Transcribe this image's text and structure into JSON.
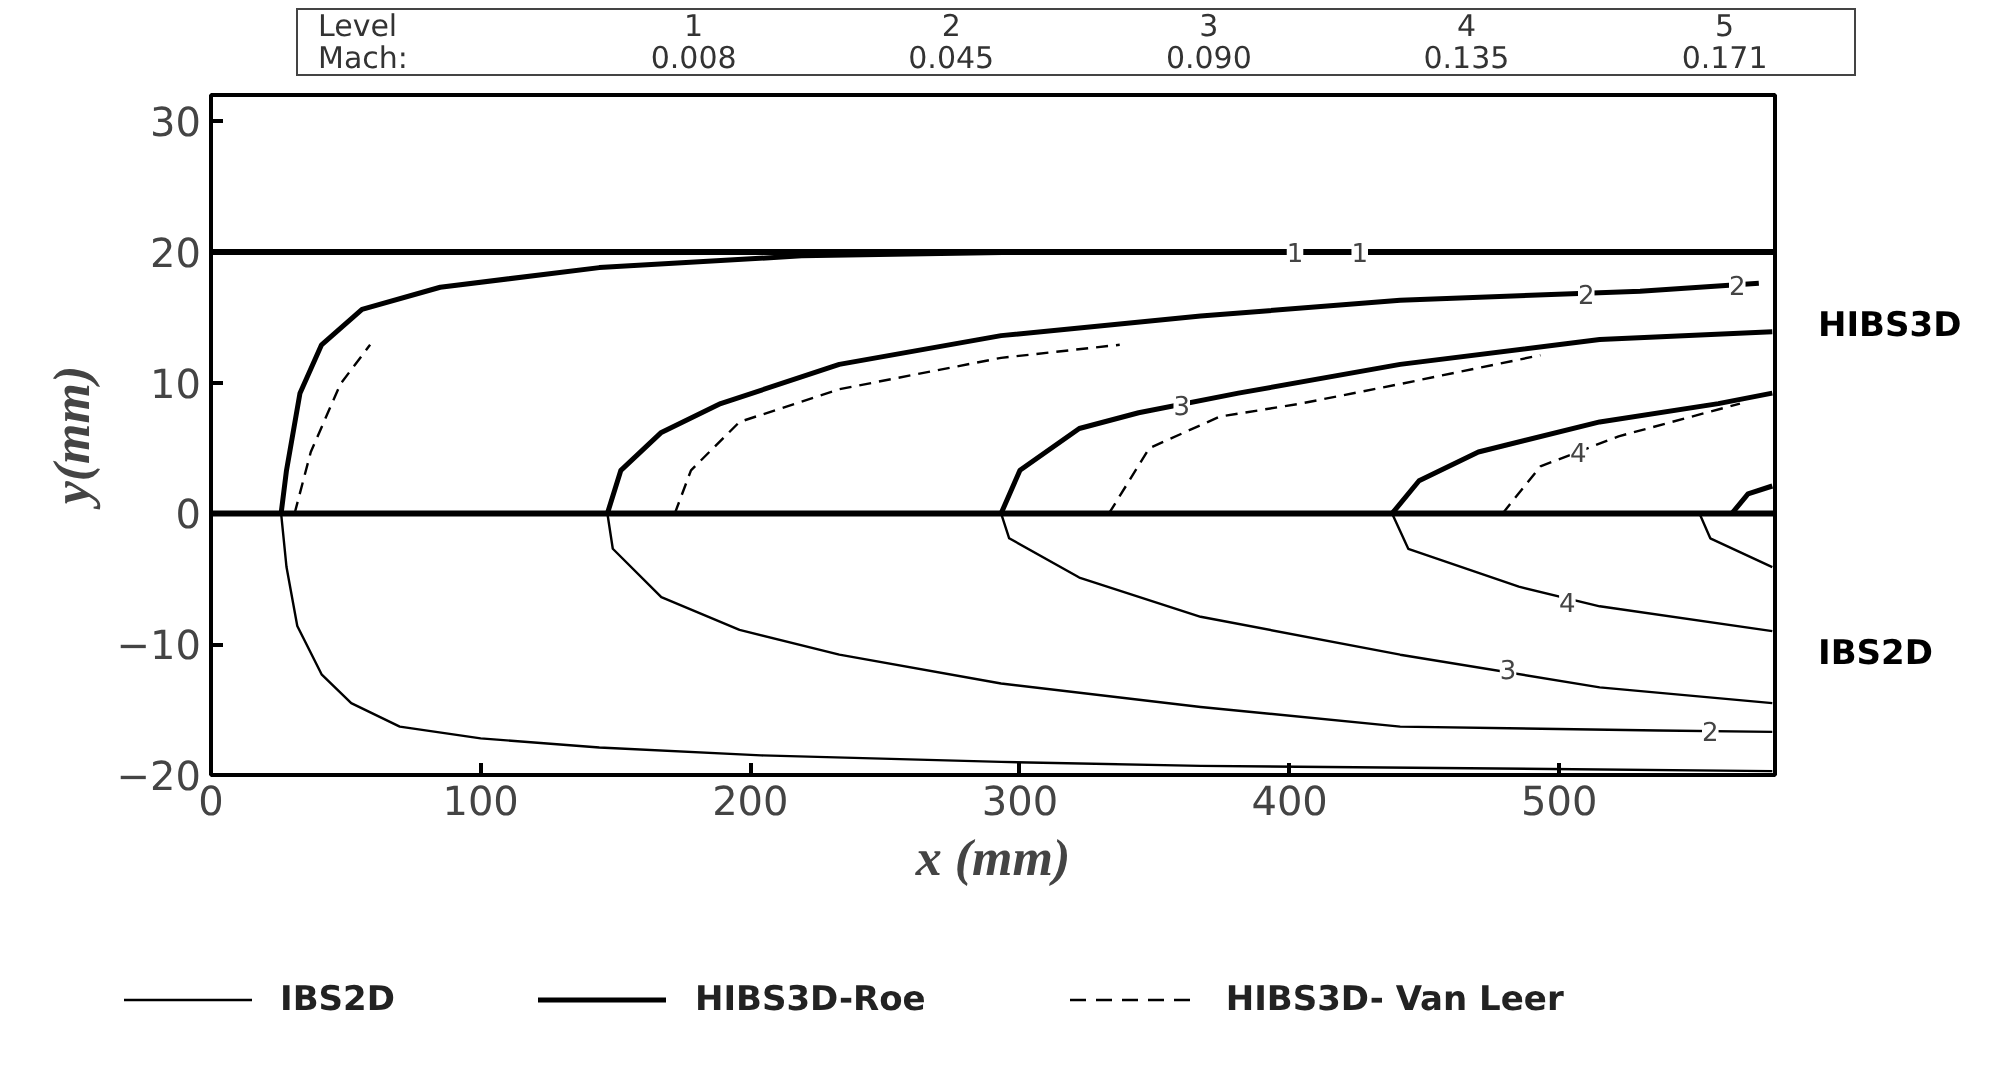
{
  "chart_data": {
    "type": "line",
    "xlabel": "x (mm)",
    "ylabel": "y(mm)",
    "xlim": [
      0,
      580
    ],
    "ylim": [
      -20,
      32
    ],
    "xticks": [
      0,
      100,
      200,
      300,
      400,
      500
    ],
    "yticks": [
      -20,
      -10,
      0,
      10,
      20,
      30
    ],
    "grid": false,
    "legend": "bottom",
    "marker": "none",
    "ref_lines": [
      {
        "axis": "y",
        "value": 20,
        "label": null,
        "color": "#000000"
      },
      {
        "axis": "y",
        "value": 0,
        "label": null,
        "color": "#000000"
      }
    ],
    "series": [
      {
        "name": "IBS2D",
        "color": "#000000",
        "line_style": "solid",
        "x": [
          26,
          28,
          32,
          41,
          52,
          70,
          100,
          144,
          204,
          293,
          367,
          579
        ],
        "values": [
          0,
          -4.1,
          -8.6,
          -12.3,
          -14.5,
          -16.3,
          -17.2,
          -17.9,
          -18.5,
          -19.0,
          -19.3,
          -19.7
        ]
      },
      {
        "name": "HIBS3D-Roe",
        "color": "#000000",
        "line_style": "solid",
        "x": [
          26,
          28,
          33,
          41,
          56,
          85,
          144,
          219,
          307,
          580
        ],
        "values": [
          0,
          3.3,
          9.2,
          12.9,
          15.6,
          17.3,
          18.8,
          19.7,
          20,
          20
        ]
      },
      {
        "name": "HIBS3D- Van Leer",
        "color": "#000000",
        "line_style": "dashed",
        "x": [
          31,
          37,
          48,
          59
        ],
        "values": [
          0,
          4.7,
          9.9,
          12.9
        ]
      },
      {
        "color": "#000000",
        "line_style": "solid",
        "x": [
          147,
          149,
          167,
          196,
          233,
          293,
          367,
          441,
          537,
          579
        ],
        "values": [
          0,
          -2.7,
          -6.4,
          -8.9,
          -10.8,
          -13.0,
          -14.8,
          -16.3,
          -16.6,
          -16.7
        ]
      },
      {
        "color": "#000000",
        "line_style": "solid",
        "x": [
          293,
          296,
          322,
          367,
          441,
          515,
          579
        ],
        "values": [
          0,
          -1.9,
          -4.9,
          -7.9,
          -10.8,
          -13.3,
          -14.5
        ]
      },
      {
        "color": "#000000",
        "line_style": "solid",
        "x": [
          438,
          444,
          485,
          515,
          579
        ],
        "values": [
          0,
          -2.7,
          -5.6,
          -7.1,
          -9.0
        ]
      },
      {
        "color": "#000000",
        "line_style": "solid",
        "x": [
          552,
          556,
          579
        ],
        "values": [
          0,
          -1.9,
          -4.1
        ]
      },
      {
        "color": "#000000",
        "line_style": "solid",
        "x": [
          147,
          152,
          167,
          189,
          233,
          293,
          367,
          441,
          530,
          574
        ],
        "values": [
          0,
          3.3,
          6.2,
          8.4,
          11.4,
          13.6,
          15.1,
          16.3,
          17.0,
          17.6
        ]
      },
      {
        "color": "#000000",
        "line_style": "solid",
        "x": [
          293,
          300,
          322,
          344,
          381,
          441,
          515,
          579
        ],
        "values": [
          0,
          3.3,
          6.5,
          7.7,
          9.2,
          11.4,
          13.3,
          13.9
        ]
      },
      {
        "color": "#000000",
        "line_style": "solid",
        "x": [
          438,
          448,
          470,
          515,
          559,
          579
        ],
        "values": [
          0,
          2.5,
          4.7,
          7.0,
          8.4,
          9.2
        ]
      },
      {
        "color": "#000000",
        "line_style": "solid",
        "x": [
          564,
          570,
          579
        ],
        "values": [
          0,
          1.5,
          2.1
        ]
      },
      {
        "color": "#000000",
        "line_style": "dashed",
        "x": [
          172,
          178,
          196,
          233,
          293,
          337
        ],
        "values": [
          0,
          3.3,
          7.0,
          9.5,
          11.9,
          12.9
        ]
      },
      {
        "color": "#000000",
        "line_style": "dashed",
        "x": [
          333,
          348,
          374,
          404,
          441,
          493
        ],
        "values": [
          0,
          5.0,
          7.4,
          8.4,
          9.9,
          12.1
        ]
      },
      {
        "color": "#000000",
        "line_style": "dashed",
        "x": [
          479,
          493,
          522,
          567
        ],
        "values": [
          0,
          3.6,
          5.9,
          8.4
        ]
      }
    ],
    "annotations": [
      "Level",
      "1",
      "2",
      "3",
      "4",
      "5",
      "Mach:",
      "0.008",
      "0.045",
      "0.090",
      "0.135",
      "0.171",
      "HIBS3D",
      "IBS2D",
      {
        "text": "1",
        "x": 402,
        "y": 20
      },
      {
        "text": "1",
        "x": 426,
        "y": 20
      },
      {
        "text": "2",
        "x": 510,
        "y": 16.8
      },
      {
        "text": "2",
        "x": 566,
        "y": 17.5
      },
      {
        "text": "3",
        "x": 360,
        "y": 8.3
      },
      {
        "text": "4",
        "x": 507,
        "y": 4.7
      },
      {
        "text": "4",
        "x": 503,
        "y": -6.8
      },
      {
        "text": "3",
        "x": 481,
        "y": -11.9
      },
      {
        "text": "2",
        "x": 556,
        "y": -16.6
      }
    ]
  }
}
